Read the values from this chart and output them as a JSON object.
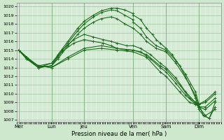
{
  "title": "Pression niveau de la mer( hPa )",
  "ylabel_ticks": [
    1007,
    1008,
    1009,
    1010,
    1011,
    1012,
    1013,
    1014,
    1015,
    1016,
    1017,
    1018,
    1019,
    1020
  ],
  "ylim": [
    1006.8,
    1020.4
  ],
  "background_color": "#cde8cd",
  "plot_bg_color": "#dff0df",
  "line_color": "#1a6b1a",
  "grid_color_minor": "#b8d8b8",
  "grid_color_major": "#a0c8a0",
  "day_positions": [
    0.0,
    0.167,
    0.333,
    0.583,
    0.75,
    0.917
  ],
  "day_labels": [
    "Mer",
    "Lun",
    "Jeu",
    "Ven",
    "Sam",
    "Dim"
  ],
  "series": [
    {
      "x": [
        0.0,
        0.04,
        0.1,
        0.167,
        0.2,
        0.25,
        0.3,
        0.333,
        0.38,
        0.42,
        0.47,
        0.5,
        0.54,
        0.58,
        0.583,
        0.62,
        0.65,
        0.68,
        0.7,
        0.72,
        0.75,
        0.78,
        0.82,
        0.87,
        0.9,
        0.917,
        0.94,
        0.97,
        1.0
      ],
      "y": [
        1015.0,
        1014.2,
        1013.0,
        1013.2,
        1014.5,
        1016.0,
        1017.5,
        1018.3,
        1019.0,
        1019.5,
        1019.8,
        1019.8,
        1019.6,
        1019.2,
        1019.0,
        1018.5,
        1017.5,
        1016.8,
        1016.2,
        1015.8,
        1015.2,
        1014.5,
        1013.2,
        1011.0,
        1009.5,
        1008.2,
        1007.5,
        1007.2,
        1009.0
      ]
    },
    {
      "x": [
        0.0,
        0.04,
        0.1,
        0.167,
        0.2,
        0.25,
        0.3,
        0.333,
        0.38,
        0.42,
        0.47,
        0.5,
        0.54,
        0.58,
        0.583,
        0.62,
        0.65,
        0.7,
        0.75,
        0.8,
        0.85,
        0.9,
        0.917,
        0.94,
        0.97,
        1.0
      ],
      "y": [
        1015.0,
        1014.0,
        1013.0,
        1013.2,
        1014.2,
        1015.8,
        1017.2,
        1018.0,
        1018.8,
        1019.3,
        1019.6,
        1019.5,
        1019.0,
        1018.5,
        1018.2,
        1017.5,
        1016.5,
        1015.5,
        1015.0,
        1013.8,
        1012.2,
        1010.2,
        1008.8,
        1007.5,
        1007.2,
        1008.5
      ]
    },
    {
      "x": [
        0.0,
        0.04,
        0.1,
        0.167,
        0.2,
        0.25,
        0.3,
        0.333,
        0.38,
        0.42,
        0.47,
        0.5,
        0.54,
        0.583,
        0.62,
        0.65,
        0.7,
        0.75,
        0.8,
        0.85,
        0.9,
        0.917,
        0.95,
        1.0
      ],
      "y": [
        1015.0,
        1014.0,
        1013.0,
        1013.2,
        1014.0,
        1015.5,
        1016.8,
        1017.5,
        1018.2,
        1018.6,
        1018.8,
        1018.6,
        1018.0,
        1017.5,
        1016.8,
        1016.0,
        1015.2,
        1014.8,
        1013.5,
        1011.8,
        1009.8,
        1008.5,
        1007.5,
        1008.2
      ]
    },
    {
      "x": [
        0.0,
        0.04,
        0.1,
        0.167,
        0.22,
        0.28,
        0.333,
        0.38,
        0.43,
        0.47,
        0.5,
        0.55,
        0.583,
        0.62,
        0.67,
        0.72,
        0.75,
        0.8,
        0.85,
        0.9,
        0.917,
        0.95,
        1.0
      ],
      "y": [
        1015.0,
        1014.2,
        1013.0,
        1013.5,
        1015.0,
        1016.2,
        1016.8,
        1016.5,
        1016.2,
        1016.0,
        1015.8,
        1015.5,
        1015.5,
        1015.2,
        1014.5,
        1013.5,
        1013.0,
        1011.8,
        1010.2,
        1009.0,
        1008.5,
        1008.2,
        1009.2
      ]
    },
    {
      "x": [
        0.0,
        0.04,
        0.1,
        0.167,
        0.22,
        0.28,
        0.333,
        0.38,
        0.43,
        0.47,
        0.5,
        0.55,
        0.583,
        0.62,
        0.67,
        0.72,
        0.75,
        0.8,
        0.85,
        0.9,
        0.917,
        0.95,
        1.0
      ],
      "y": [
        1015.0,
        1014.0,
        1013.2,
        1013.5,
        1014.8,
        1015.8,
        1016.2,
        1016.0,
        1015.8,
        1015.5,
        1015.2,
        1015.0,
        1015.0,
        1014.8,
        1014.0,
        1013.0,
        1012.5,
        1011.2,
        1009.8,
        1008.8,
        1008.5,
        1008.5,
        1009.5
      ]
    },
    {
      "x": [
        0.0,
        0.04,
        0.1,
        0.167,
        0.25,
        0.333,
        0.42,
        0.5,
        0.583,
        0.65,
        0.72,
        0.75,
        0.82,
        0.87,
        0.9,
        0.917,
        0.95,
        1.0
      ],
      "y": [
        1015.0,
        1014.2,
        1013.2,
        1013.0,
        1014.2,
        1015.2,
        1015.5,
        1015.2,
        1015.0,
        1014.5,
        1013.2,
        1012.8,
        1011.0,
        1009.5,
        1009.0,
        1008.8,
        1009.0,
        1010.0
      ]
    },
    {
      "x": [
        0.0,
        0.04,
        0.1,
        0.167,
        0.25,
        0.333,
        0.42,
        0.5,
        0.583,
        0.65,
        0.72,
        0.75,
        0.82,
        0.87,
        0.9,
        0.917,
        0.95,
        1.0
      ],
      "y": [
        1015.0,
        1014.0,
        1013.2,
        1013.0,
        1014.0,
        1015.0,
        1015.2,
        1015.0,
        1014.8,
        1014.2,
        1012.5,
        1012.0,
        1010.2,
        1009.0,
        1008.8,
        1008.8,
        1009.2,
        1010.2
      ]
    }
  ]
}
